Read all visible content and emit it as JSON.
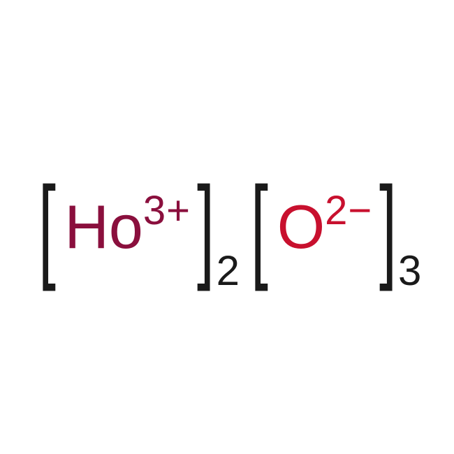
{
  "formula": {
    "groups": [
      {
        "element_symbol": "Ho",
        "charge_number": "3",
        "charge_sign": "+",
        "subscript": "2",
        "symbol_color": "#8a0f3d",
        "charge_color": "#8a0f3d"
      },
      {
        "element_symbol": "O",
        "charge_number": "2",
        "charge_sign": "−",
        "subscript": "3",
        "symbol_color": "#c8102e",
        "charge_color": "#c8102e"
      }
    ],
    "bracket_color": "#1a1a1a",
    "subscript_color": "#1a1a1a",
    "background_color": "#ffffff",
    "symbol_fontsize": 88,
    "charge_fontsize": 58,
    "subscript_fontsize": 60,
    "bracket_fontsize": 150
  }
}
